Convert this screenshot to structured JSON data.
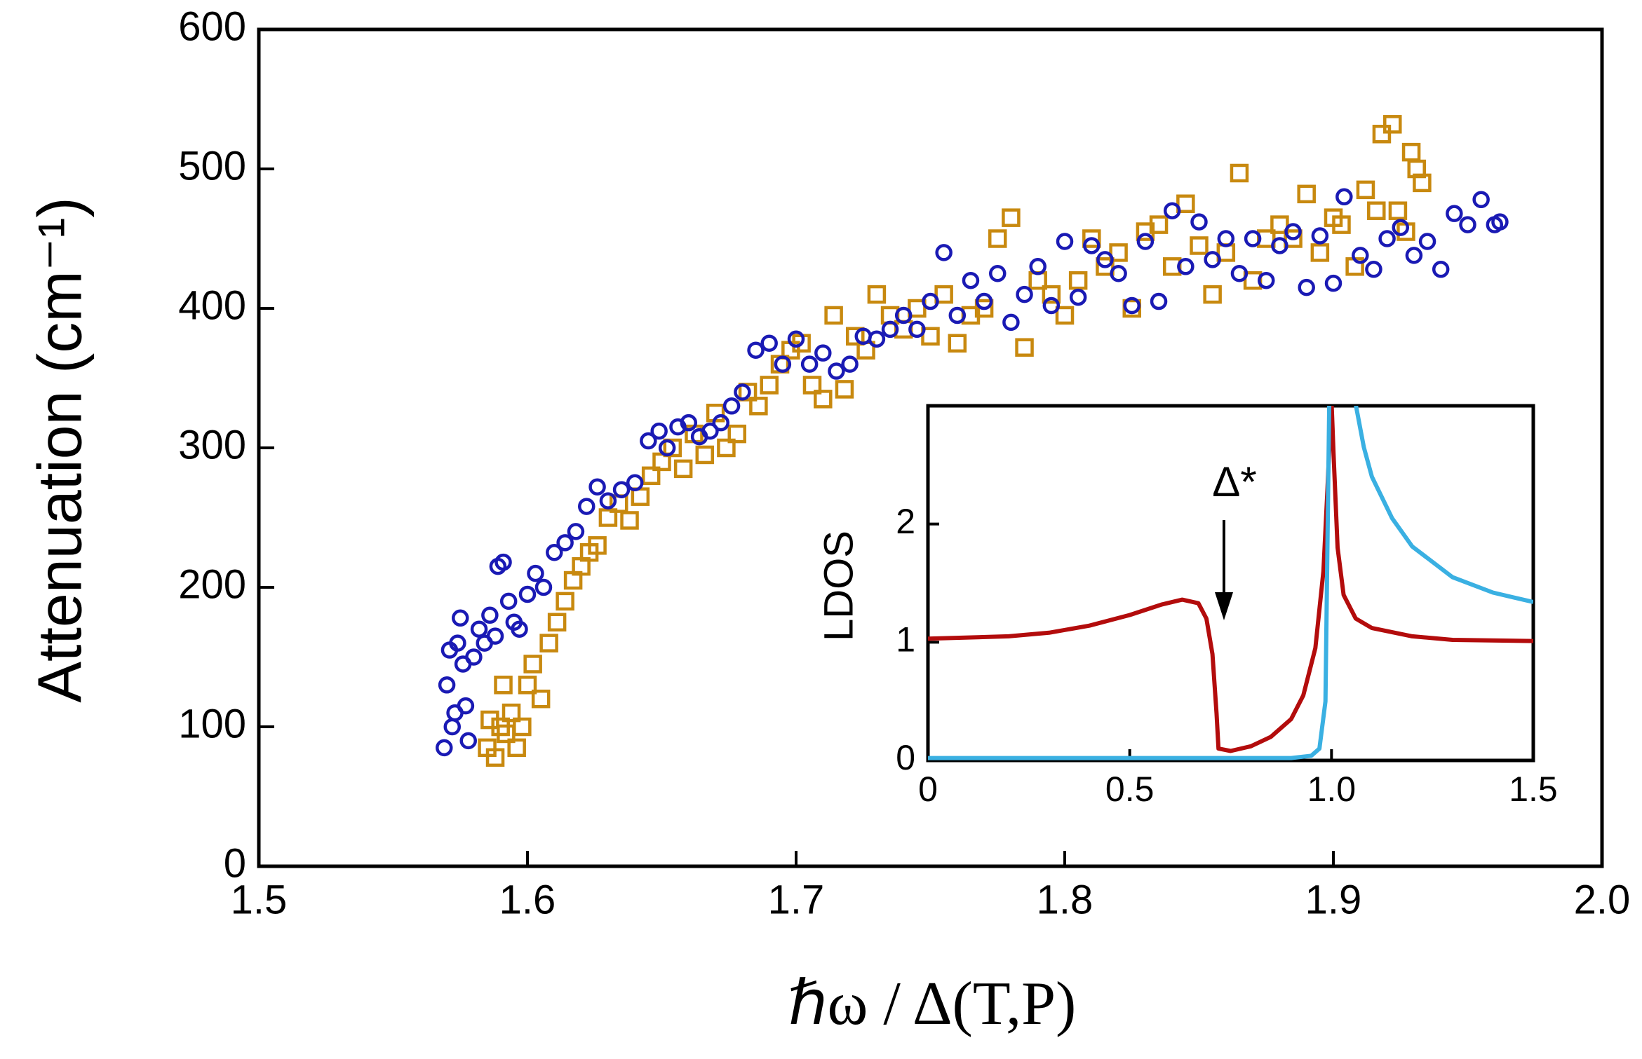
{
  "chart_data": [
    {
      "type": "scatter",
      "xlabel": "ℏω / Δ(T,P)",
      "ylabel": "Attenuation (cm⁻¹)",
      "xlim": [
        1.5,
        2.0
      ],
      "xticks": [
        1.5,
        1.6,
        1.7,
        1.8,
        1.9,
        {
          "value": 2.0,
          "label": "2.0"
        }
      ],
      "ylim": [
        0,
        600
      ],
      "yticks": [
        0,
        100,
        200,
        300,
        400,
        500,
        600
      ],
      "series": [
        {
          "color": "#c8890f",
          "marker": "square",
          "x": [
            1.585,
            1.586,
            1.588,
            1.59,
            1.591,
            1.592,
            1.594,
            1.596,
            1.598,
            1.6,
            1.602,
            1.605,
            1.608,
            1.611,
            1.614,
            1.617,
            1.62,
            1.623,
            1.626,
            1.63,
            1.634,
            1.638,
            1.642,
            1.646,
            1.65,
            1.654,
            1.658,
            1.662,
            1.666,
            1.67,
            1.674,
            1.678,
            1.682,
            1.686,
            1.69,
            1.694,
            1.698,
            1.702,
            1.706,
            1.71,
            1.714,
            1.718,
            1.722,
            1.726,
            1.73,
            1.735,
            1.74,
            1.745,
            1.75,
            1.755,
            1.76,
            1.765,
            1.77,
            1.775,
            1.78,
            1.785,
            1.79,
            1.795,
            1.8,
            1.805,
            1.81,
            1.815,
            1.82,
            1.825,
            1.83,
            1.835,
            1.84,
            1.845,
            1.85,
            1.855,
            1.86,
            1.865,
            1.87,
            1.875,
            1.88,
            1.885,
            1.89,
            1.895,
            1.9,
            1.903,
            1.908,
            1.912,
            1.916,
            1.918,
            1.922,
            1.924,
            1.927,
            1.929,
            1.931,
            1.933
          ],
          "values": [
            85,
            105,
            78,
            100,
            130,
            95,
            110,
            85,
            100,
            130,
            145,
            120,
            160,
            175,
            190,
            205,
            215,
            225,
            230,
            250,
            260,
            248,
            265,
            280,
            290,
            300,
            285,
            310,
            295,
            325,
            300,
            310,
            340,
            330,
            345,
            360,
            370,
            375,
            345,
            335,
            395,
            342,
            380,
            370,
            410,
            395,
            385,
            400,
            380,
            410,
            375,
            395,
            400,
            450,
            465,
            372,
            420,
            410,
            395,
            420,
            450,
            430,
            440,
            400,
            455,
            460,
            430,
            475,
            445,
            410,
            440,
            497,
            420,
            450,
            460,
            450,
            482,
            440,
            465,
            460,
            430,
            485,
            470,
            525,
            532,
            470,
            455,
            512,
            500,
            490
          ]
        },
        {
          "color": "#1a1ab4",
          "marker": "circle",
          "x": [
            1.569,
            1.57,
            1.571,
            1.572,
            1.573,
            1.574,
            1.575,
            1.576,
            1.577,
            1.578,
            1.58,
            1.582,
            1.584,
            1.586,
            1.588,
            1.589,
            1.591,
            1.593,
            1.595,
            1.597,
            1.6,
            1.603,
            1.606,
            1.61,
            1.614,
            1.618,
            1.622,
            1.626,
            1.63,
            1.635,
            1.64,
            1.645,
            1.649,
            1.652,
            1.656,
            1.66,
            1.664,
            1.668,
            1.672,
            1.676,
            1.68,
            1.685,
            1.69,
            1.695,
            1.7,
            1.705,
            1.71,
            1.715,
            1.72,
            1.725,
            1.73,
            1.735,
            1.74,
            1.745,
            1.75,
            1.755,
            1.76,
            1.765,
            1.77,
            1.775,
            1.78,
            1.785,
            1.79,
            1.795,
            1.8,
            1.805,
            1.81,
            1.815,
            1.82,
            1.825,
            1.83,
            1.835,
            1.84,
            1.845,
            1.85,
            1.855,
            1.86,
            1.865,
            1.87,
            1.875,
            1.88,
            1.885,
            1.89,
            1.895,
            1.9,
            1.904,
            1.91,
            1.915,
            1.92,
            1.925,
            1.93,
            1.935,
            1.94,
            1.945,
            1.95,
            1.955,
            1.96,
            1.962
          ],
          "values": [
            85,
            130,
            155,
            100,
            110,
            160,
            178,
            145,
            115,
            90,
            150,
            170,
            160,
            180,
            165,
            215,
            218,
            190,
            175,
            170,
            195,
            210,
            200,
            225,
            232,
            240,
            258,
            272,
            262,
            270,
            275,
            305,
            312,
            300,
            315,
            318,
            308,
            312,
            318,
            330,
            340,
            370,
            375,
            360,
            378,
            360,
            368,
            355,
            360,
            380,
            378,
            385,
            395,
            385,
            405,
            440,
            395,
            420,
            405,
            425,
            390,
            410,
            430,
            402,
            448,
            408,
            445,
            435,
            425,
            402,
            448,
            405,
            470,
            430,
            462,
            435,
            450,
            425,
            450,
            420,
            445,
            455,
            415,
            452,
            418,
            480,
            438,
            428,
            450,
            458,
            438,
            448,
            428,
            468,
            460,
            478,
            460,
            462
          ]
        }
      ]
    },
    {
      "type": "line",
      "ylabel": "LDOS",
      "annotation": "Δ*",
      "xlim": [
        0,
        1.5
      ],
      "xticks": [
        0,
        0.5,
        {
          "value": 1.0,
          "label": "1.0"
        },
        1.5
      ],
      "ylim": [
        0,
        3
      ],
      "yticks": [
        0,
        1,
        2
      ],
      "series": [
        {
          "color": "#b30c0c",
          "x": [
            0,
            0.1,
            0.2,
            0.3,
            0.4,
            0.5,
            0.58,
            0.63,
            0.67,
            0.69,
            0.705,
            0.715,
            0.72,
            0.75,
            0.8,
            0.85,
            0.9,
            0.93,
            0.96,
            0.98,
            0.99,
            1.0,
            1.005,
            1.015,
            1.03,
            1.06,
            1.1,
            1.2,
            1.3,
            1.5
          ],
          "values": [
            1.03,
            1.04,
            1.05,
            1.08,
            1.14,
            1.23,
            1.32,
            1.36,
            1.33,
            1.2,
            0.9,
            0.4,
            0.1,
            0.08,
            0.12,
            0.2,
            0.35,
            0.55,
            0.95,
            1.6,
            2.3,
            3.05,
            2.6,
            1.8,
            1.4,
            1.2,
            1.12,
            1.05,
            1.02,
            1.01
          ]
        },
        {
          "color": "#3ab0e2",
          "x": [
            0,
            0.3,
            0.6,
            0.9,
            0.95,
            0.97,
            0.985,
            0.995,
            1.02,
            1.05,
            1.06,
            1.08,
            1.1,
            1.15,
            1.2,
            1.3,
            1.4,
            1.5
          ],
          "values": [
            0.02,
            0.02,
            0.02,
            0.02,
            0.04,
            0.1,
            0.5,
            3.2,
            5.0,
            3.28,
            3.01,
            2.65,
            2.4,
            2.05,
            1.81,
            1.55,
            1.42,
            1.34
          ]
        }
      ]
    }
  ]
}
